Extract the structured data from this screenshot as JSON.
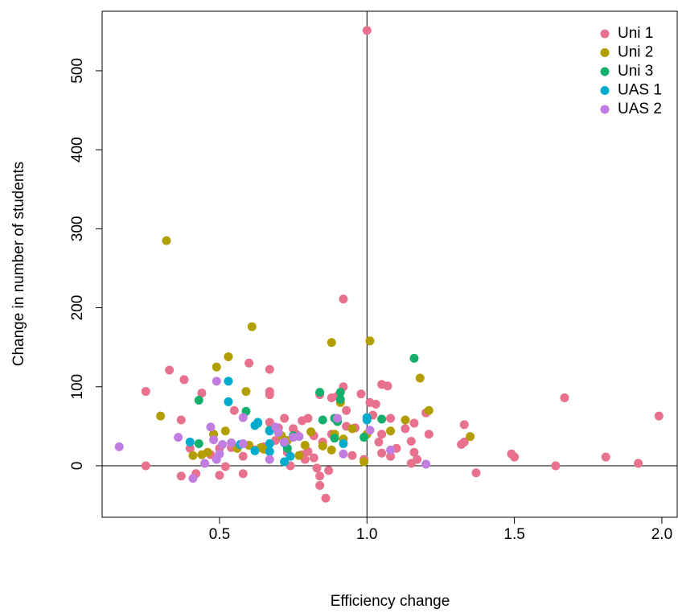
{
  "chart_data": {
    "type": "scatter",
    "xlabel": "Efficiency change",
    "ylabel": "Change in number of students",
    "xlim": [
      0.102,
      2.052
    ],
    "ylim": [
      -65.2,
      575.3
    ],
    "xticks": [
      0.5,
      {
        "value": 1,
        "label": "1.0"
      },
      1.5,
      {
        "value": 2,
        "label": "2.0"
      }
    ],
    "yticks": [
      0,
      100,
      200,
      300,
      400,
      500
    ],
    "hline": 0,
    "vline": 1,
    "legend": "topright",
    "series": [
      {
        "name": "Uni 1",
        "color": "#e8718d",
        "values": [
          [
            1.0,
            551
          ],
          [
            0.92,
            211
          ],
          [
            0.33,
            121
          ],
          [
            0.38,
            109
          ],
          [
            0.25,
            94
          ],
          [
            0.44,
            92
          ],
          [
            0.6,
            130
          ],
          [
            0.67,
            122
          ],
          [
            0.67,
            94
          ],
          [
            0.67,
            90
          ],
          [
            0.37,
            58
          ],
          [
            0.55,
            70
          ],
          [
            0.72,
            60
          ],
          [
            0.78,
            57
          ],
          [
            0.8,
            60
          ],
          [
            0.84,
            90
          ],
          [
            0.88,
            86
          ],
          [
            0.9,
            88
          ],
          [
            0.92,
            100
          ],
          [
            0.93,
            70
          ],
          [
            0.98,
            91
          ],
          [
            1.01,
            80
          ],
          [
            1.03,
            78
          ],
          [
            1.05,
            103
          ],
          [
            1.07,
            101
          ],
          [
            1.02,
            64
          ],
          [
            1.08,
            60
          ],
          [
            1.13,
            47
          ],
          [
            1.16,
            54
          ],
          [
            1.2,
            67
          ],
          [
            1.21,
            40
          ],
          [
            1.15,
            31
          ],
          [
            1.1,
            22
          ],
          [
            1.08,
            12
          ],
          [
            1.05,
            40
          ],
          [
            1.04,
            30
          ],
          [
            1.15,
            3
          ],
          [
            1.16,
            17
          ],
          [
            1.17,
            8
          ],
          [
            1.32,
            27
          ],
          [
            1.33,
            52
          ],
          [
            1.33,
            30
          ],
          [
            1.37,
            -9
          ],
          [
            1.49,
            15
          ],
          [
            1.5,
            11
          ],
          [
            1.64,
            0
          ],
          [
            1.67,
            86
          ],
          [
            1.81,
            11
          ],
          [
            1.92,
            3
          ],
          [
            1.99,
            63
          ],
          [
            0.25,
            0
          ],
          [
            0.37,
            -13
          ],
          [
            0.42,
            -10
          ],
          [
            0.5,
            -12
          ],
          [
            0.52,
            -1
          ],
          [
            0.58,
            -10
          ],
          [
            0.4,
            22
          ],
          [
            0.47,
            14
          ],
          [
            0.5,
            22
          ],
          [
            0.54,
            23
          ],
          [
            0.58,
            12
          ],
          [
            0.62,
            20
          ],
          [
            0.65,
            24
          ],
          [
            0.67,
            55
          ],
          [
            0.7,
            48
          ],
          [
            0.73,
            17
          ],
          [
            0.74,
            0
          ],
          [
            0.76,
            40
          ],
          [
            0.78,
            14
          ],
          [
            0.79,
            8
          ],
          [
            0.8,
            18
          ],
          [
            0.82,
            10
          ],
          [
            0.83,
            -3
          ],
          [
            0.84,
            -13
          ],
          [
            0.84,
            -25
          ],
          [
            0.86,
            -41
          ],
          [
            0.87,
            -6
          ],
          [
            0.85,
            30
          ],
          [
            0.88,
            40
          ],
          [
            0.95,
            13
          ],
          [
            0.99,
            8
          ],
          [
            0.96,
            48
          ],
          [
            1.05,
            16
          ],
          [
            0.93,
            50
          ],
          [
            0.75,
            47
          ],
          [
            0.82,
            38
          ],
          [
            0.69,
            32
          ]
        ]
      },
      {
        "name": "Uni 2",
        "color": "#b39e00",
        "values": [
          [
            0.32,
            285
          ],
          [
            0.61,
            176
          ],
          [
            0.88,
            156
          ],
          [
            1.01,
            158
          ],
          [
            0.53,
            138
          ],
          [
            0.49,
            125
          ],
          [
            0.59,
            94
          ],
          [
            1.18,
            111
          ],
          [
            0.3,
            63
          ],
          [
            1.21,
            70
          ],
          [
            1.13,
            58
          ],
          [
            0.91,
            80
          ],
          [
            0.95,
            47
          ],
          [
            0.89,
            40
          ],
          [
            0.92,
            34
          ],
          [
            0.85,
            25
          ],
          [
            0.88,
            20
          ],
          [
            0.99,
            5
          ],
          [
            1.0,
            40
          ],
          [
            1.08,
            44
          ],
          [
            1.35,
            37
          ],
          [
            0.41,
            13
          ],
          [
            0.44,
            14
          ],
          [
            0.46,
            17
          ],
          [
            0.48,
            40
          ],
          [
            0.52,
            44
          ],
          [
            0.56,
            22
          ],
          [
            0.6,
            26
          ],
          [
            0.65,
            21
          ],
          [
            0.71,
            38
          ],
          [
            0.73,
            32
          ],
          [
            0.79,
            26
          ],
          [
            0.81,
            43
          ],
          [
            0.77,
            13
          ],
          [
            0.64,
            23
          ]
        ]
      },
      {
        "name": "Uni 3",
        "color": "#14af6a",
        "values": [
          [
            1.16,
            136
          ],
          [
            0.84,
            93
          ],
          [
            0.91,
            93
          ],
          [
            0.43,
            83
          ],
          [
            0.59,
            69
          ],
          [
            0.91,
            84
          ],
          [
            0.89,
            60
          ],
          [
            1.05,
            59
          ],
          [
            0.85,
            58
          ],
          [
            0.9,
            56
          ],
          [
            0.89,
            35
          ],
          [
            0.99,
            36
          ],
          [
            0.43,
            28
          ],
          [
            0.73,
            22
          ],
          [
            0.67,
            45
          ],
          [
            0.63,
            54
          ],
          [
            0.75,
            38
          ]
        ]
      },
      {
        "name": "UAS 1",
        "color": "#00abcc",
        "values": [
          [
            0.53,
            107
          ],
          [
            0.53,
            81
          ],
          [
            1.0,
            61
          ],
          [
            1.0,
            58
          ],
          [
            0.62,
            51
          ],
          [
            0.63,
            55
          ],
          [
            0.67,
            44
          ],
          [
            0.4,
            30
          ],
          [
            0.57,
            27
          ],
          [
            0.62,
            19
          ],
          [
            0.67,
            28
          ],
          [
            0.72,
            29
          ],
          [
            0.72,
            5
          ],
          [
            0.74,
            12
          ],
          [
            0.92,
            28
          ],
          [
            0.67,
            18
          ]
        ]
      },
      {
        "name": "UAS 2",
        "color": "#c17ee0",
        "values": [
          [
            0.16,
            24
          ],
          [
            0.36,
            36
          ],
          [
            0.41,
            -16
          ],
          [
            0.47,
            49
          ],
          [
            0.49,
            107
          ],
          [
            0.58,
            61
          ],
          [
            0.58,
            28
          ],
          [
            0.48,
            33
          ],
          [
            0.5,
            15
          ],
          [
            0.51,
            27
          ],
          [
            0.54,
            29
          ],
          [
            0.45,
            3
          ],
          [
            0.49,
            8
          ],
          [
            0.69,
            49
          ],
          [
            0.7,
            42
          ],
          [
            0.72,
            30
          ],
          [
            0.75,
            36
          ],
          [
            0.77,
            37
          ],
          [
            0.9,
            60
          ],
          [
            0.92,
            15
          ],
          [
            1.01,
            45
          ],
          [
            1.08,
            20
          ],
          [
            1.2,
            2
          ],
          [
            0.67,
            8
          ]
        ]
      }
    ]
  }
}
